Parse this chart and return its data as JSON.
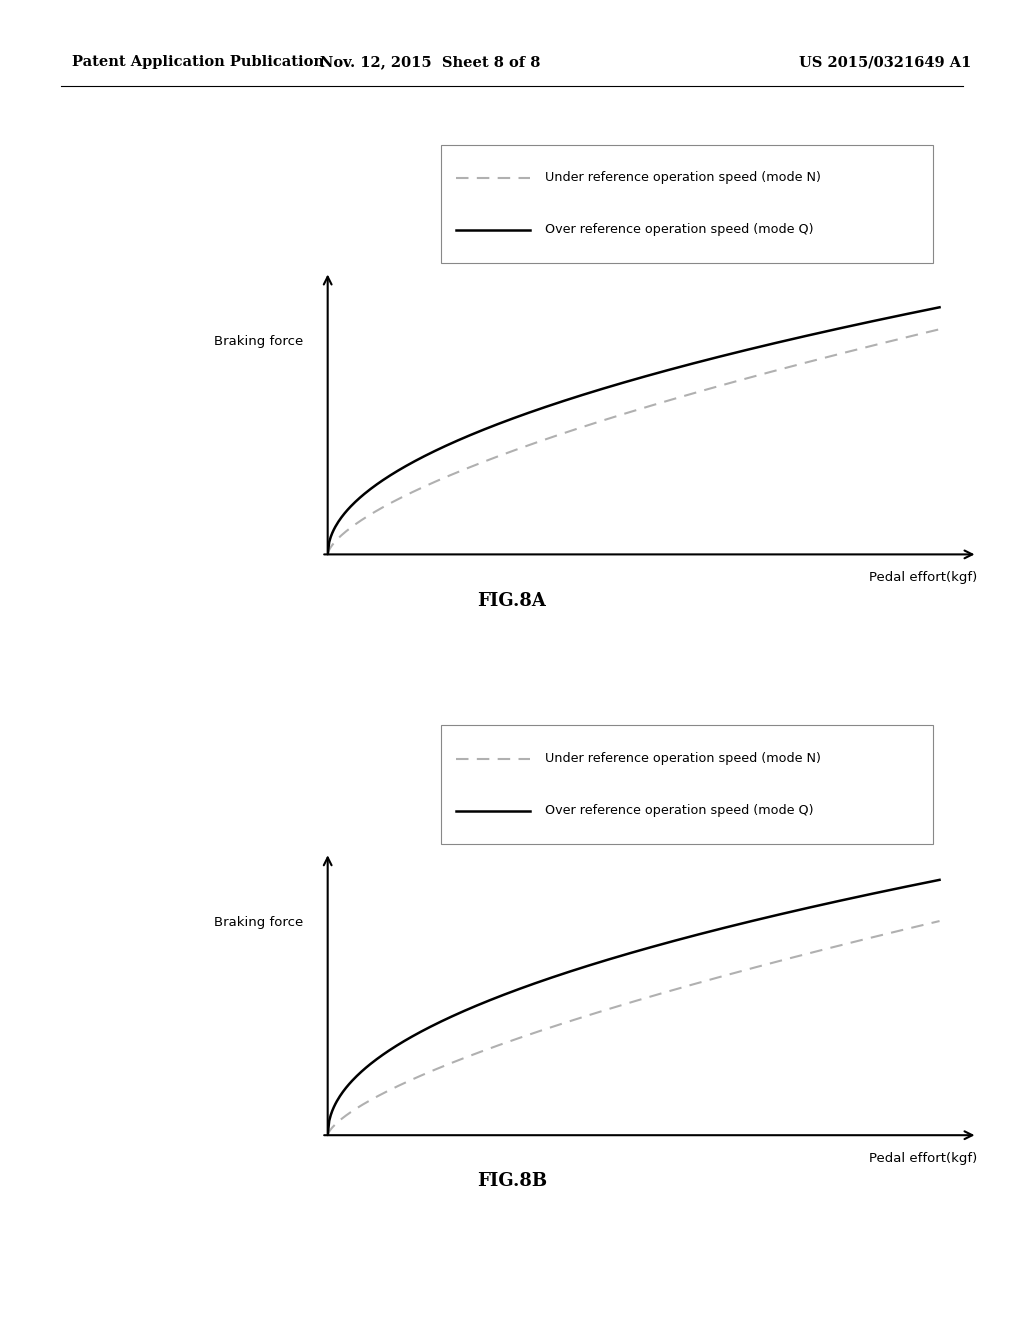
{
  "header_left": "Patent Application Publication",
  "header_mid": "Nov. 12, 2015  Sheet 8 of 8",
  "header_right": "US 2015/0321649 A1",
  "legend_label_dashed": "Under reference operation speed (mode N)",
  "legend_label_solid": "Over reference operation speed (mode Q)",
  "xlabel": "Pedal effort(kgf)",
  "ylabel": "Braking force",
  "fig_label_A": "FIG.8A",
  "fig_label_B": "FIG.8B",
  "background_color": "#ffffff",
  "line_color_solid": "#000000",
  "line_color_dashed": "#b0b0b0",
  "axis_color": "#000000",
  "text_color": "#000000",
  "legend_border_color": "#888888",
  "header_sep_color": "#000000"
}
